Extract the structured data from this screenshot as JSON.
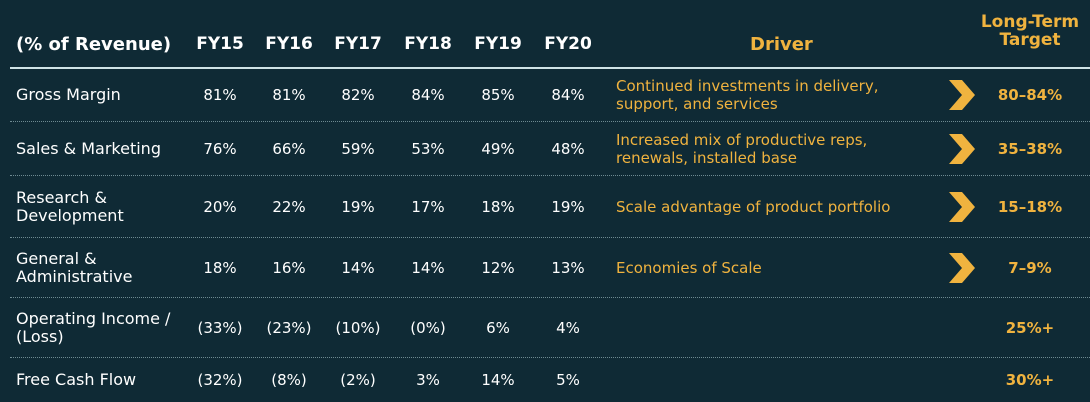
{
  "header": {
    "title": "(% of Revenue)",
    "years": [
      "FY15",
      "FY16",
      "FY17",
      "FY18",
      "FY19",
      "FY20"
    ],
    "driver": "Driver",
    "target": "Long-Term Target"
  },
  "rows": [
    {
      "label": "Gross Margin",
      "values": [
        "81%",
        "81%",
        "82%",
        "84%",
        "85%",
        "84%"
      ],
      "driver": "Continued investments in delivery, support, and services",
      "target": "80–84%",
      "chevron": true
    },
    {
      "label": "Sales & Marketing",
      "values": [
        "76%",
        "66%",
        "59%",
        "53%",
        "49%",
        "48%"
      ],
      "driver": "Increased mix of productive reps, renewals, installed base",
      "target": "35–38%",
      "chevron": true
    },
    {
      "label": "Research & Development",
      "values": [
        "20%",
        "22%",
        "19%",
        "17%",
        "18%",
        "19%"
      ],
      "driver": "Scale advantage of product portfolio",
      "target": "15–18%",
      "chevron": true
    },
    {
      "label": "General & Administrative",
      "values": [
        "18%",
        "16%",
        "14%",
        "14%",
        "12%",
        "13%"
      ],
      "driver": "Economies of Scale",
      "target": "7–9%",
      "chevron": true
    },
    {
      "label": "Operating Income / (Loss)",
      "values": [
        "(33%)",
        "(23%)",
        "(10%)",
        "(0%)",
        "6%",
        "4%"
      ],
      "driver": "",
      "target": "25%+",
      "chevron": false
    },
    {
      "label": "Free Cash Flow",
      "values": [
        "(32%)",
        "(8%)",
        "(2%)",
        "3%",
        "14%",
        "5%"
      ],
      "driver": "",
      "target": "30%+",
      "chevron": false
    }
  ],
  "colors": {
    "background": "#0f2a35",
    "accent": "#f0b33f",
    "text": "#ffffff",
    "rule": "#cfe3e6"
  },
  "chart_data": {
    "type": "table",
    "columns": [
      "(% of Revenue)",
      "FY15",
      "FY16",
      "FY17",
      "FY18",
      "FY19",
      "FY20",
      "Driver",
      "Long-Term Target"
    ],
    "rows": [
      [
        "Gross Margin",
        "81%",
        "81%",
        "82%",
        "84%",
        "85%",
        "84%",
        "Continued investments in delivery, support, and services",
        "80–84%"
      ],
      [
        "Sales & Marketing",
        "76%",
        "66%",
        "59%",
        "53%",
        "49%",
        "48%",
        "Increased mix of productive reps, renewals, installed base",
        "35–38%"
      ],
      [
        "Research & Development",
        "20%",
        "22%",
        "19%",
        "17%",
        "18%",
        "19%",
        "Scale advantage of product portfolio",
        "15–18%"
      ],
      [
        "General & Administrative",
        "18%",
        "16%",
        "14%",
        "14%",
        "12%",
        "13%",
        "Economies of Scale",
        "7–9%"
      ],
      [
        "Operating Income / (Loss)",
        "(33%)",
        "(23%)",
        "(10%)",
        "(0%)",
        "6%",
        "4%",
        "",
        "25%+"
      ],
      [
        "Free Cash Flow",
        "(32%)",
        "(8%)",
        "(2%)",
        "3%",
        "14%",
        "5%",
        "",
        "30%+"
      ]
    ]
  }
}
